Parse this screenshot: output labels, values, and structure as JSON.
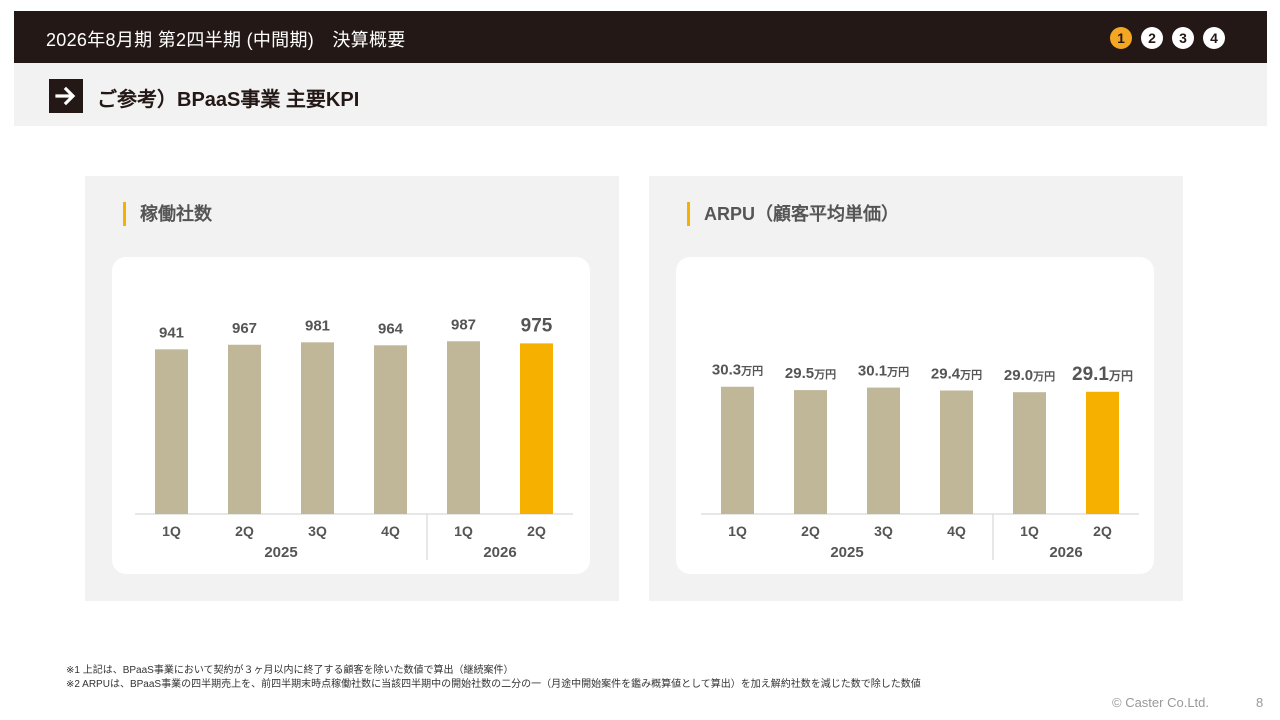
{
  "header": {
    "title": "2026年8月期 第2四半期 (中間期)　決算概要",
    "steps": [
      "1",
      "2",
      "3",
      "4"
    ],
    "active_step": "1"
  },
  "subheader": {
    "arrow_icon": "arrow-right-icon",
    "title": "ご参考）BPaaS事業 主要KPI"
  },
  "colors": {
    "bar": "#c0b698",
    "highlight": "#f5b000",
    "dark": "#231815"
  },
  "chart_data": [
    {
      "type": "bar",
      "title": "稼働社数",
      "categories": [
        "1Q",
        "2Q",
        "3Q",
        "4Q",
        "1Q",
        "2Q"
      ],
      "years": [
        {
          "label": "2025",
          "span": [
            0,
            3
          ]
        },
        {
          "label": "2026",
          "span": [
            4,
            5
          ]
        }
      ],
      "values": [
        941,
        967,
        981,
        964,
        987,
        975
      ],
      "data_labels": [
        "941",
        "967",
        "981",
        "964",
        "987",
        "975"
      ],
      "unit": "",
      "highlight_index": 5,
      "ylim": [
        0,
        1200
      ]
    },
    {
      "type": "bar",
      "title": "ARPU（顧客平均単価）",
      "categories": [
        "1Q",
        "2Q",
        "3Q",
        "4Q",
        "1Q",
        "2Q"
      ],
      "years": [
        {
          "label": "2025",
          "span": [
            0,
            3
          ]
        },
        {
          "label": "2026",
          "span": [
            4,
            5
          ]
        }
      ],
      "values": [
        30.3,
        29.5,
        30.1,
        29.4,
        29.0,
        29.1
      ],
      "data_labels": [
        "30.3",
        "29.5",
        "30.1",
        "29.4",
        "29.0",
        "29.1"
      ],
      "unit": "万円",
      "highlight_index": 5,
      "ylim": [
        0,
        50
      ]
    }
  ],
  "footnotes": [
    "※1 上記は、BPaaS事業において契約が３ヶ月以内に終了する顧客を除いた数値で算出（継続案件）",
    "※2 ARPUは、BPaaS事業の四半期売上を、前四半期末時点稼働社数に当該四半期中の開始社数の二分の一（月途中開始案件を鑑み概算値として算出）を加え解約社数を減じた数で除した数値"
  ],
  "footer": {
    "copyright": "© Caster Co.Ltd.",
    "page": "8"
  }
}
